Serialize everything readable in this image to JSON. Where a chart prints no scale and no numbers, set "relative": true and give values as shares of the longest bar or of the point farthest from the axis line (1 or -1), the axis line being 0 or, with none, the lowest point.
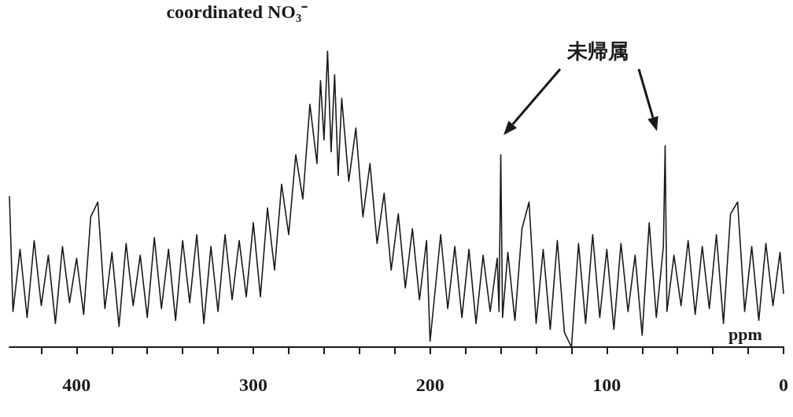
{
  "chart_data": {
    "type": "line",
    "relative": true,
    "xlabel": "ppm",
    "color": "#1a1a1a",
    "line_style": "solid",
    "marker": "none",
    "annotations": [
      {
        "text": "coordinated NO₃⁻",
        "x": 258,
        "y": 1
      },
      "未帰属"
    ],
    "xlim": [
      438,
      0
    ],
    "xticks": [
      {
        "value": 420,
        "label": null
      },
      400,
      {
        "value": 380,
        "label": null
      },
      {
        "value": 360,
        "label": null
      },
      {
        "value": 340,
        "label": null
      },
      {
        "value": 320,
        "label": null
      },
      300,
      {
        "value": 280,
        "label": null
      },
      {
        "value": 260,
        "label": null
      },
      {
        "value": 240,
        "label": null
      },
      {
        "value": 220,
        "label": null
      },
      200,
      {
        "value": 180,
        "label": null
      },
      {
        "value": 160,
        "label": null
      },
      {
        "value": 140,
        "label": null
      },
      {
        "value": 120,
        "label": null
      },
      100,
      {
        "value": 80,
        "label": null
      },
      {
        "value": 60,
        "label": null
      },
      {
        "value": 40,
        "label": null
      },
      {
        "value": 20,
        "label": null
      },
      0
    ],
    "x": [
      438,
      436,
      432,
      428,
      424,
      420,
      416,
      412,
      408,
      404,
      400,
      396,
      392,
      388,
      384,
      380,
      376,
      372,
      368,
      364,
      360,
      356,
      352,
      348,
      344,
      340,
      336,
      332,
      328,
      324,
      320,
      316,
      312,
      308,
      304,
      300,
      296,
      292,
      288,
      284,
      280,
      276,
      272,
      268,
      264,
      262,
      260,
      258,
      256,
      254,
      252,
      250,
      246,
      242,
      238,
      234,
      230,
      226,
      222,
      218,
      214,
      210,
      206,
      202,
      200,
      194,
      190,
      186,
      182,
      178,
      174,
      170,
      166,
      162,
      161,
      160,
      159,
      156,
      152,
      148,
      144,
      140,
      136,
      132,
      128,
      124,
      120,
      116,
      112,
      108,
      104,
      100,
      96,
      92,
      88,
      84,
      80,
      76,
      72,
      68,
      67,
      66,
      62,
      58,
      54,
      50,
      46,
      42,
      38,
      34,
      30,
      26,
      22,
      18,
      14,
      10,
      6,
      2,
      0
    ],
    "values": [
      0.51,
      0.12,
      0.33,
      0.1,
      0.36,
      0.14,
      0.31,
      0.08,
      0.34,
      0.15,
      0.3,
      0.11,
      0.44,
      0.49,
      0.13,
      0.32,
      0.07,
      0.35,
      0.14,
      0.31,
      0.1,
      0.37,
      0.13,
      0.33,
      0.09,
      0.36,
      0.15,
      0.38,
      0.08,
      0.34,
      0.12,
      0.38,
      0.16,
      0.36,
      0.17,
      0.42,
      0.17,
      0.47,
      0.26,
      0.55,
      0.38,
      0.65,
      0.5,
      0.82,
      0.62,
      0.9,
      0.7,
      1.0,
      0.66,
      0.92,
      0.58,
      0.84,
      0.56,
      0.74,
      0.44,
      0.62,
      0.35,
      0.52,
      0.26,
      0.45,
      0.2,
      0.4,
      0.16,
      0.36,
      0.02,
      0.38,
      0.13,
      0.34,
      0.1,
      0.33,
      0.08,
      0.31,
      0.12,
      0.3,
      0.12,
      0.65,
      0.1,
      0.32,
      0.09,
      0.4,
      0.49,
      0.08,
      0.33,
      0.06,
      0.36,
      0.05,
      0.0,
      0.35,
      0.08,
      0.38,
      0.1,
      0.33,
      0.06,
      0.35,
      0.12,
      0.31,
      0.04,
      0.42,
      0.1,
      0.34,
      0.68,
      0.12,
      0.31,
      0.14,
      0.36,
      0.11,
      0.34,
      0.13,
      0.38,
      0.08,
      0.45,
      0.49,
      0.12,
      0.34,
      0.09,
      0.35,
      0.14,
      0.32,
      0.18
    ]
  }
}
